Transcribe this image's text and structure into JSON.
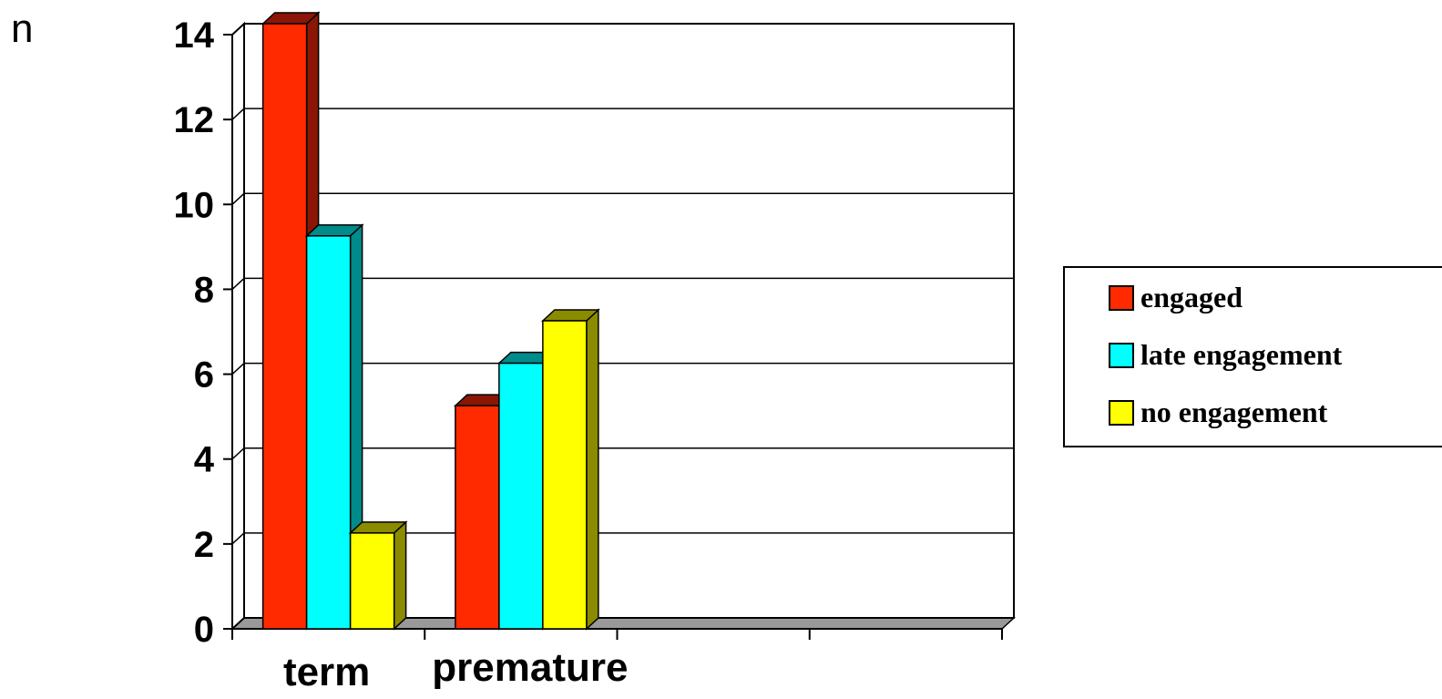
{
  "chart_data": {
    "type": "bar",
    "ylabel": "n",
    "categories": [
      "term",
      "premature"
    ],
    "series": [
      {
        "name": "engaged",
        "values": [
          14,
          5
        ],
        "color": "#ff2a00",
        "side_color": "#8b1605"
      },
      {
        "name": "late engagement",
        "values": [
          9,
          6
        ],
        "color": "#00ffff",
        "side_color": "#008b8b"
      },
      {
        "name": "no engagement",
        "values": [
          2,
          7
        ],
        "color": "#ffff00",
        "side_color": "#8b8b00"
      }
    ],
    "ylim": [
      0,
      14
    ],
    "yticks": [
      0,
      2,
      4,
      6,
      8,
      10,
      12,
      14
    ],
    "grid": true,
    "legend_position": "right",
    "style": "3d-clustered-column"
  }
}
